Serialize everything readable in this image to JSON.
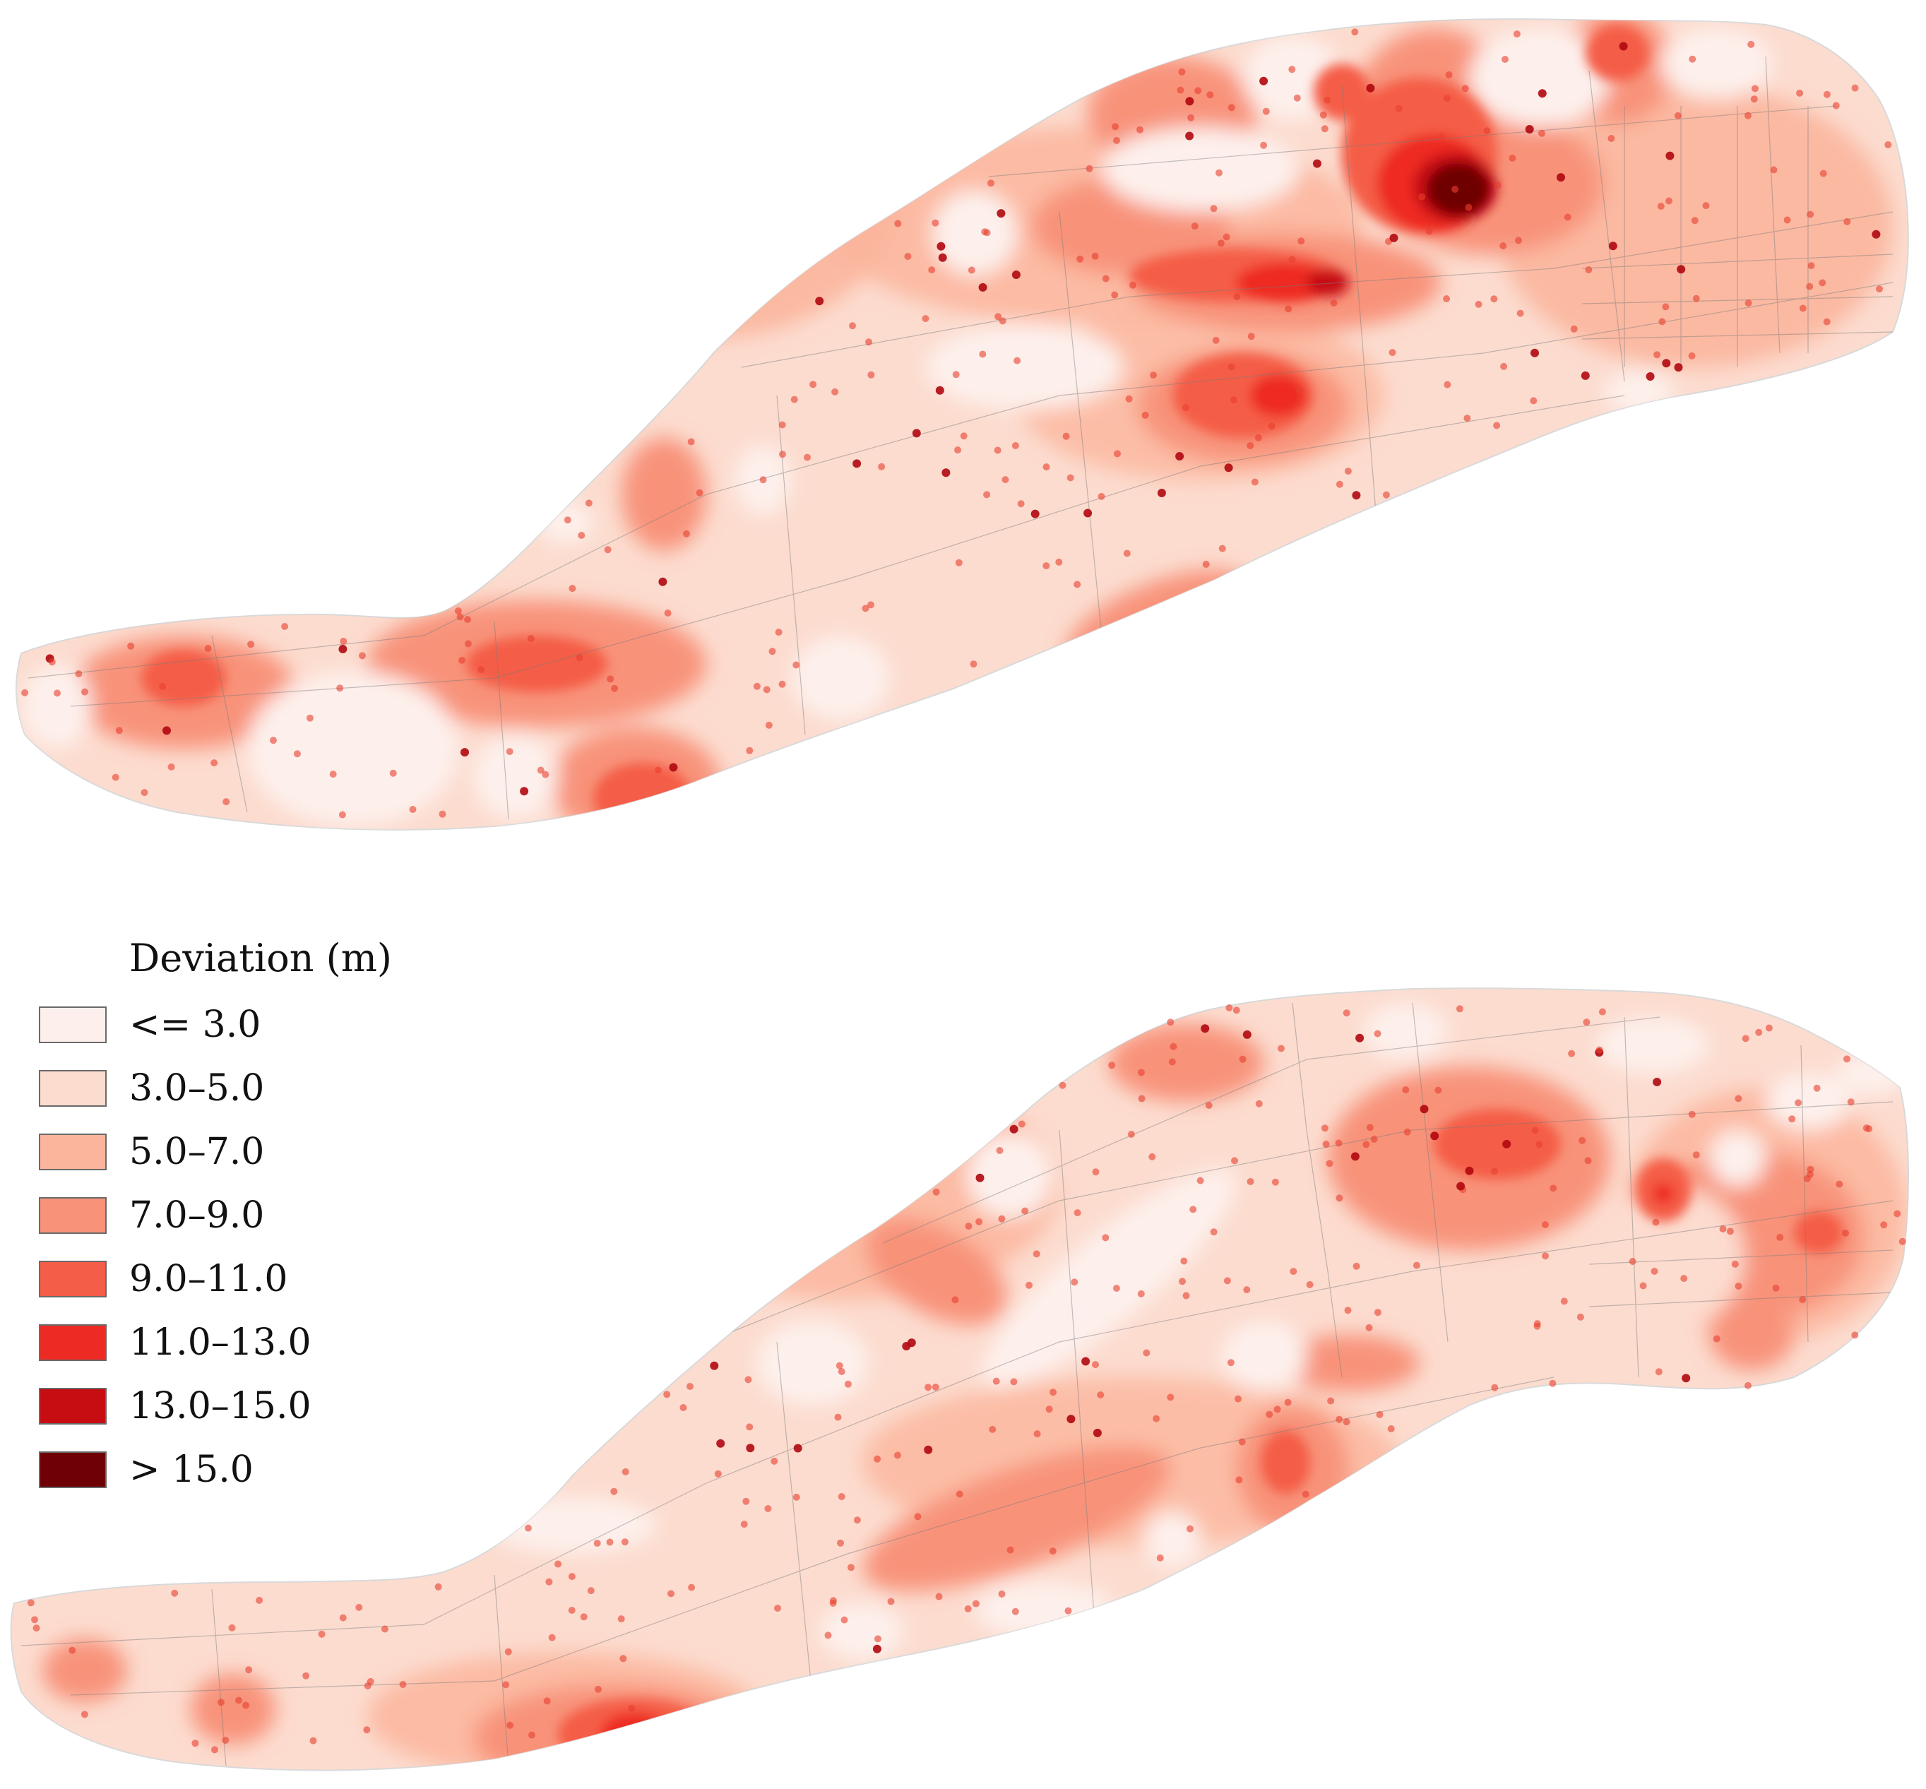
{
  "legend": {
    "title": "Deviation (m)",
    "classes": [
      {
        "label": "<= 3.0",
        "color": "#fdf0ec"
      },
      {
        "label": "3.0–5.0",
        "color": "#fcdccf"
      },
      {
        "label": "5.0–7.0",
        "color": "#fbb59c"
      },
      {
        "label": "7.0–9.0",
        "color": "#f8937a"
      },
      {
        "label": "9.0–11.0",
        "color": "#f45d47"
      },
      {
        "label": "11.0–13.0",
        "color": "#ee2a24"
      },
      {
        "label": "13.0–15.0",
        "color": "#c70c12"
      },
      {
        "label": "> 15.0",
        "color": "#6e0006"
      }
    ]
  },
  "colors": {
    "outline": "#9a9a9a",
    "roads": "#7a7a7a",
    "point": "#e8402e",
    "point_dark": "#b0080f"
  }
}
